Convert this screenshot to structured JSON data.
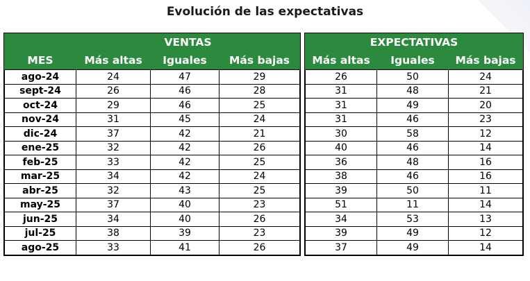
{
  "title": "Evolución de las expectativas",
  "ventas": {
    "group_label": "VENTAS",
    "headers": [
      "MES",
      "Más altas",
      "Iguales",
      "Más bajas"
    ]
  },
  "expectativas": {
    "group_label": "EXPECTATIVAS",
    "headers": [
      "Más altas",
      "Iguales",
      "Más bajas"
    ]
  },
  "rows": [
    {
      "mes": "ago-24",
      "v_altas": "24",
      "v_iguales": "47",
      "v_bajas": "29",
      "e_altas": "26",
      "e_iguales": "50",
      "e_bajas": "24"
    },
    {
      "mes": "sept-24",
      "v_altas": "26",
      "v_iguales": "46",
      "v_bajas": "28",
      "e_altas": "31",
      "e_iguales": "48",
      "e_bajas": "21"
    },
    {
      "mes": "oct-24",
      "v_altas": "29",
      "v_iguales": "46",
      "v_bajas": "25",
      "e_altas": "31",
      "e_iguales": "49",
      "e_bajas": "20"
    },
    {
      "mes": "nov-24",
      "v_altas": "31",
      "v_iguales": "45",
      "v_bajas": "24",
      "e_altas": "31",
      "e_iguales": "46",
      "e_bajas": "23"
    },
    {
      "mes": "dic-24",
      "v_altas": "37",
      "v_iguales": "42",
      "v_bajas": "21",
      "e_altas": "30",
      "e_iguales": "58",
      "e_bajas": "12"
    },
    {
      "mes": "ene-25",
      "v_altas": "32",
      "v_iguales": "42",
      "v_bajas": "26",
      "e_altas": "40",
      "e_iguales": "46",
      "e_bajas": "14"
    },
    {
      "mes": "feb-25",
      "v_altas": "33",
      "v_iguales": "42",
      "v_bajas": "25",
      "e_altas": "36",
      "e_iguales": "48",
      "e_bajas": "16"
    },
    {
      "mes": "mar-25",
      "v_altas": "34",
      "v_iguales": "42",
      "v_bajas": "24",
      "e_altas": "38",
      "e_iguales": "46",
      "e_bajas": "16"
    },
    {
      "mes": "abr-25",
      "v_altas": "32",
      "v_iguales": "43",
      "v_bajas": "25",
      "e_altas": "39",
      "e_iguales": "50",
      "e_bajas": "11"
    },
    {
      "mes": "may-25",
      "v_altas": "37",
      "v_iguales": "40",
      "v_bajas": "23",
      "e_altas": "51",
      "e_iguales": "11",
      "e_bajas": "14"
    },
    {
      "mes": "jun-25",
      "v_altas": "34",
      "v_iguales": "40",
      "v_bajas": "26",
      "e_altas": "34",
      "e_iguales": "53",
      "e_bajas": "13"
    },
    {
      "mes": "jul-25",
      "v_altas": "38",
      "v_iguales": "39",
      "v_bajas": "23",
      "e_altas": "39",
      "e_iguales": "49",
      "e_bajas": "12"
    },
    {
      "mes": "ago-25",
      "v_altas": "33",
      "v_iguales": "41",
      "v_bajas": "26",
      "e_altas": "37",
      "e_iguales": "49",
      "e_bajas": "14"
    }
  ],
  "colors": {
    "header_green": "#2c8a3e",
    "header_text": "#ffffff",
    "corner_accent": "#eef0f7"
  }
}
